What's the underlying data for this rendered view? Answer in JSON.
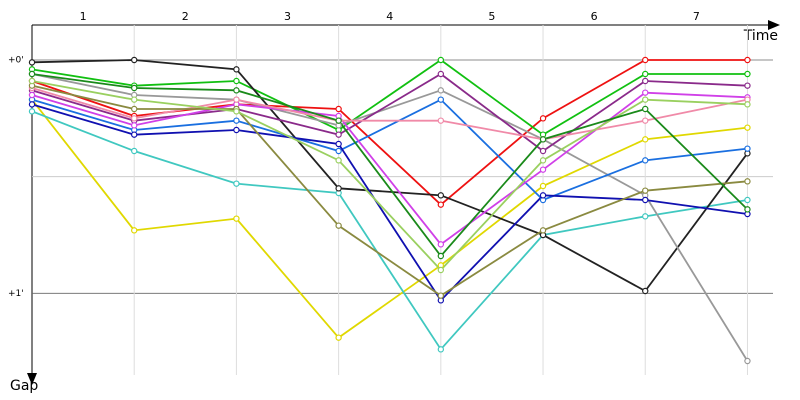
{
  "chart_data": {
    "type": "line",
    "x_label": "Time",
    "y_label": "Gap",
    "x": [
      0,
      1,
      2,
      3,
      4,
      5,
      6,
      7
    ],
    "xlim": [
      0,
      7.25
    ],
    "xticks": [
      {
        "value": 0.5,
        "label": "1"
      },
      {
        "value": 1.5,
        "label": "2"
      },
      {
        "value": 2.5,
        "label": "3"
      },
      {
        "value": 3.5,
        "label": "4"
      },
      {
        "value": 4.5,
        "label": "5"
      },
      {
        "value": 5.5,
        "label": "6"
      },
      {
        "value": 6.5,
        "label": "7"
      }
    ],
    "ylim": [
      -0.15,
      1.35
    ],
    "yticks": [
      {
        "value": 0,
        "label": "+0'"
      },
      {
        "value": 1,
        "label": "+1'"
      }
    ],
    "minor_grid": [
      0.5
    ],
    "series": [
      {
        "color": "#e0d800",
        "values": [
          0.17,
          0.73,
          0.68,
          1.19,
          0.88,
          0.54,
          0.34,
          0.29
        ]
      },
      {
        "color": "#40c8c0",
        "values": [
          0.22,
          0.39,
          0.53,
          0.57,
          1.24,
          0.75,
          0.67,
          0.6
        ]
      },
      {
        "color": "#ee1111",
        "values": [
          0.09,
          0.24,
          0.19,
          0.21,
          0.62,
          0.25,
          0,
          0
        ]
      },
      {
        "color": "#11c011",
        "values": [
          0.04,
          0.11,
          0.09,
          0.3,
          0,
          0.32,
          0.06,
          0.06
        ]
      },
      {
        "color": "#222222",
        "values": [
          0.01,
          0,
          0.04,
          0.55,
          0.58,
          0.75,
          0.99,
          0.4
        ]
      },
      {
        "color": "#999999",
        "values": [
          0.06,
          0.15,
          0.17,
          0.28,
          0.13,
          0.34,
          0.58,
          1.29
        ]
      },
      {
        "color": "#1a6fe0",
        "values": [
          0.17,
          0.3,
          0.26,
          0.39,
          0.17,
          0.6,
          0.43,
          0.38
        ]
      },
      {
        "color": "#1010b0",
        "values": [
          0.19,
          0.32,
          0.3,
          0.36,
          1.03,
          0.58,
          0.6,
          0.66
        ]
      },
      {
        "color": "#8a2a8a",
        "values": [
          0.13,
          0.26,
          0.21,
          0.32,
          0.06,
          0.39,
          0.09,
          0.11
        ]
      },
      {
        "color": "#d040e8",
        "values": [
          0.15,
          0.28,
          0.19,
          0.24,
          0.79,
          0.47,
          0.14,
          0.16
        ]
      },
      {
        "color": "#f08aa8",
        "values": [
          0.12,
          0.25,
          0.17,
          0.26,
          0.26,
          0.34,
          0.26,
          0.17
        ]
      },
      {
        "color": "#8a8a40",
        "values": [
          0.11,
          0.21,
          0.21,
          0.71,
          1.01,
          0.73,
          0.56,
          0.52
        ]
      },
      {
        "color": "#9ad060",
        "values": [
          0.09,
          0.17,
          0.22,
          0.43,
          0.9,
          0.43,
          0.17,
          0.19
        ]
      },
      {
        "color": "#1a8a1a",
        "values": [
          0.06,
          0.12,
          0.13,
          0.26,
          0.84,
          0.34,
          0.21,
          0.64
        ]
      }
    ]
  }
}
